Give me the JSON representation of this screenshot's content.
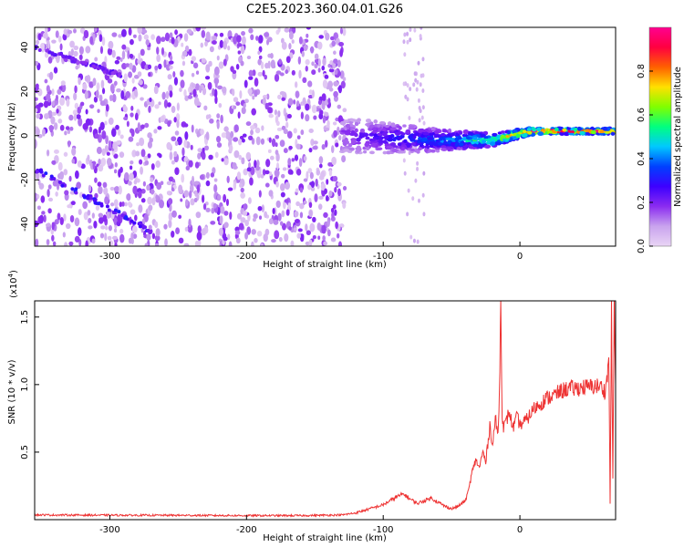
{
  "figure": {
    "title": "C2E5.2023.360.04.01.G26"
  },
  "chart_data": [
    {
      "type": "heatmap",
      "xlabel": "Height of straight line (km)",
      "ylabel": "Frequency (Hz)",
      "xlim": [
        -355,
        70
      ],
      "ylim": [
        -50,
        49
      ],
      "xticks": [
        -300,
        -200,
        -100,
        0
      ],
      "xtick_labels": [
        "-300",
        "-200",
        "-100",
        "0"
      ],
      "yticks": [
        -40,
        -20,
        0,
        20,
        40
      ],
      "ytick_labels": [
        "-40",
        "-20",
        "0",
        "20",
        "40"
      ],
      "colorbar": {
        "label": "Normalized spectral amplitude",
        "range": [
          0,
          1
        ],
        "ticks": [
          0.0,
          0.2,
          0.4,
          0.6,
          0.8
        ],
        "tick_labels": [
          "0.0",
          "0.2",
          "0.4",
          "0.6",
          "0.8"
        ],
        "colormap": [
          "#e9d5f5",
          "#c9a3ee",
          "#8b2cf0",
          "#3d00ff",
          "#0040ff",
          "#00c8ff",
          "#00ff80",
          "#80ff00",
          "#ffe000",
          "#ff6000",
          "#ff0040",
          "#ff0090"
        ]
      },
      "features": [
        {
          "kind": "noise_region",
          "x": [
            -355,
            -128
          ],
          "y": [
            -50,
            49
          ],
          "amplitude": 0.12
        },
        {
          "kind": "diagonal_line",
          "x": [
            -355,
            -270
          ],
          "y": [
            -15,
            -43
          ],
          "amplitude": 0.25
        },
        {
          "kind": "diagonal_line",
          "x": [
            -355,
            -290
          ],
          "y": [
            40,
            27
          ],
          "amplitude": 0.2
        },
        {
          "kind": "sparse_column",
          "x": [
            -85,
            -70
          ],
          "y": [
            -50,
            49
          ],
          "amplitude": 0.06
        },
        {
          "kind": "signal_track",
          "x": [
            -130,
            -60,
            -20,
            0,
            10,
            70
          ],
          "y": [
            0,
            -2,
            -2,
            1,
            2,
            2
          ],
          "amplitude": [
            0.2,
            0.4,
            0.6,
            0.8,
            0.95,
            0.9
          ]
        }
      ],
      "grid": false,
      "legend": "none"
    },
    {
      "type": "line",
      "xlabel": "Height of straight line (km)",
      "ylabel": "SNR (10 * v/v)",
      "yscale_label": "(x10",
      "yscale_exp": "4",
      "yscale_close": ")",
      "xlim": [
        -355,
        70
      ],
      "ylim": [
        0,
        1.62
      ],
      "xticks": [
        -300,
        -200,
        -100,
        0
      ],
      "xtick_labels": [
        "-300",
        "-200",
        "-100",
        "0"
      ],
      "yticks": [
        0.5,
        1.0,
        1.5
      ],
      "ytick_labels": [
        "0.5",
        "1.0",
        "1.5"
      ],
      "series": [
        {
          "color": "#ee3333",
          "x": [
            -355,
            -300,
            -250,
            -200,
            -160,
            -130,
            -120,
            -110,
            -100,
            -95,
            -90,
            -85,
            -80,
            -75,
            -70,
            -65,
            -60,
            -55,
            -50,
            -45,
            -40,
            -38,
            -35,
            -32,
            -30,
            -27,
            -25,
            -22,
            -20,
            -18,
            -16,
            -15,
            -14,
            -13,
            -12,
            -10,
            -8,
            -5,
            -2,
            0,
            5,
            10,
            15,
            20,
            25,
            30,
            35,
            40,
            45,
            50,
            55,
            60,
            62,
            64,
            65,
            66,
            67,
            68,
            69,
            70
          ],
          "y": [
            0.035,
            0.033,
            0.032,
            0.03,
            0.03,
            0.035,
            0.05,
            0.08,
            0.11,
            0.14,
            0.17,
            0.19,
            0.15,
            0.12,
            0.14,
            0.16,
            0.13,
            0.1,
            0.08,
            0.1,
            0.14,
            0.2,
            0.35,
            0.45,
            0.38,
            0.5,
            0.42,
            0.7,
            0.55,
            0.75,
            0.62,
            0.95,
            1.6,
            0.8,
            0.68,
            0.72,
            0.8,
            0.68,
            0.76,
            0.7,
            0.74,
            0.82,
            0.86,
            0.9,
            0.92,
            0.95,
            0.97,
            0.97,
            0.98,
            0.98,
            0.99,
            0.98,
            0.95,
            1.05,
            1.25,
            0.12,
            1.55,
            0.3,
            1.6,
            1.0
          ]
        }
      ],
      "grid": false,
      "legend": "none"
    }
  ]
}
